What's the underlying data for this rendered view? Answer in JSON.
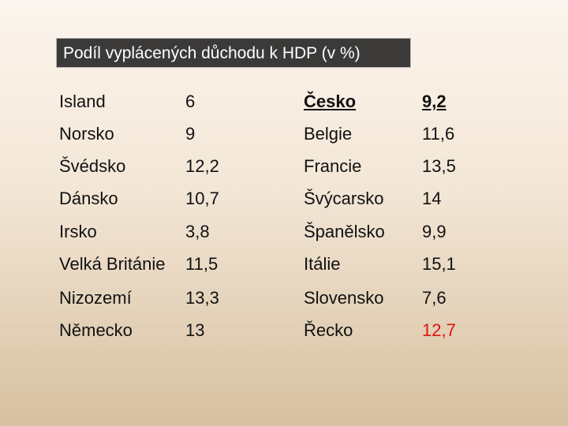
{
  "title": "Podíl vyplácených důchodu k HDP (v %)",
  "table": {
    "rows": [
      [
        "Island",
        "6",
        "Česko",
        "9,2"
      ],
      [
        "Norsko",
        "9",
        "Belgie",
        "11,6"
      ],
      [
        "Švédsko",
        "12,2",
        "Francie",
        "13,5"
      ],
      [
        "Dánsko",
        "10,7",
        "Švýcarsko",
        "14"
      ],
      [
        "Irsko",
        "3,8",
        "Španělsko",
        "9,9"
      ],
      [
        "Velká Británie",
        "11,5",
        "Itálie",
        "15,1"
      ],
      [
        "Nizozemí",
        "13,3",
        "Slovensko",
        "7,6"
      ],
      [
        "Německo",
        "13",
        "Řecko",
        "12,7"
      ]
    ]
  }
}
